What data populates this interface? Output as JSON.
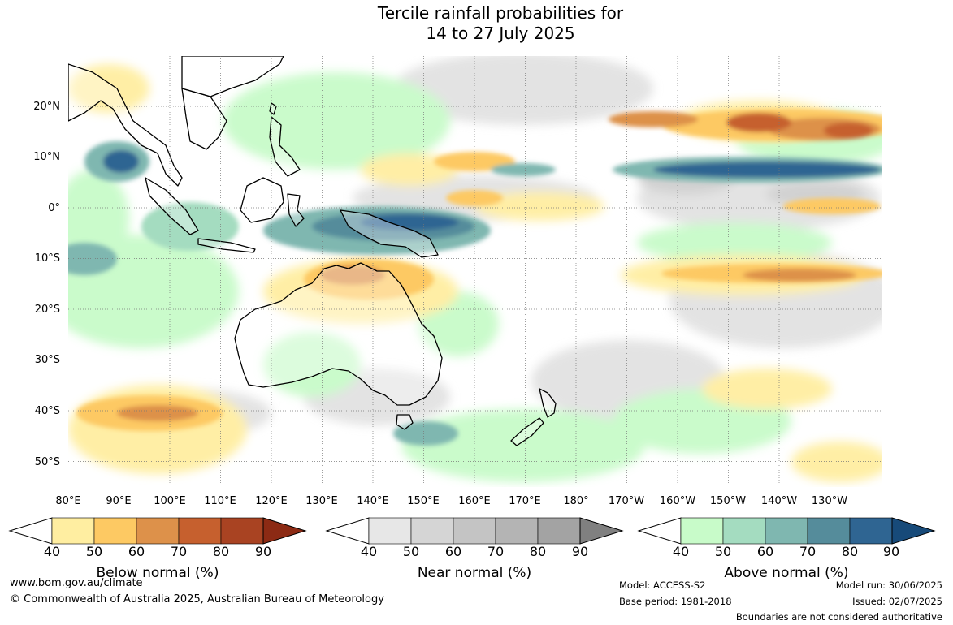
{
  "title_line1": "Tercile rainfall probabilities for",
  "title_line2": "14 to 27 July 2025",
  "lat_labels": [
    "20°N",
    "10°N",
    "0°",
    "10°S",
    "20°S",
    "30°S",
    "40°S",
    "50°S"
  ],
  "lon_labels": [
    "80°E",
    "90°E",
    "100°E",
    "110°E",
    "120°E",
    "130°E",
    "140°E",
    "150°E",
    "160°E",
    "170°E",
    "180°",
    "170°W",
    "160°W",
    "150°W",
    "140°W",
    "130°W"
  ],
  "colorbars": [
    {
      "title": "Below normal (%)",
      "ticks": [
        "40",
        "50",
        "60",
        "70",
        "80",
        "90"
      ],
      "colors": [
        "#ffeea1",
        "#fdc963",
        "#dd914a",
        "#c6602e",
        "#a94322",
        "#8c2a14"
      ]
    },
    {
      "title": "Near normal (%)",
      "ticks": [
        "40",
        "50",
        "60",
        "70",
        "80",
        "90"
      ],
      "colors": [
        "#e7e7e7",
        "#d5d5d5",
        "#c4c4c4",
        "#b4b4b4",
        "#a3a3a3",
        "#808080"
      ]
    },
    {
      "title": "Above normal (%)",
      "ticks": [
        "40",
        "50",
        "60",
        "70",
        "80",
        "90"
      ],
      "colors": [
        "#c8fbc9",
        "#a4dcc0",
        "#7fb7b0",
        "#558c9b",
        "#2f6592",
        "#174a79"
      ]
    }
  ],
  "footer": {
    "website": "www.bom.gov.au/climate",
    "copyright": "© Commonwealth of Australia 2025, Australian Bureau of Meteorology",
    "model": "Model: ACCESS-S2",
    "base_period": "Base period: 1981-2018",
    "model_run": "Model run: 30/06/2025",
    "issued": "Issued: 02/07/2025",
    "disclaimer": "Boundaries are not considered authoritative"
  }
}
